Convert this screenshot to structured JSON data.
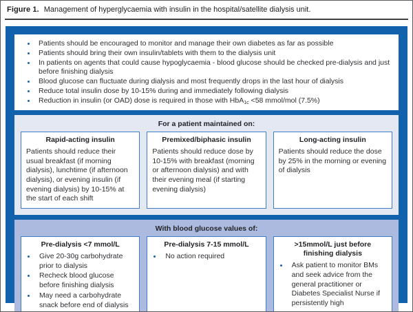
{
  "figure": {
    "label": "Figure 1.",
    "caption": "Management of hyperglycaemia with insulin in the hospital/satellite dialysis unit."
  },
  "colors": {
    "dark_blue_frame": "#1161ac",
    "box_border_blue": "#3e7cc3",
    "maintained_panel_bg": "#e3e8f3",
    "glucose_panel_bg": "#abbade",
    "bullet_blue": "#1a5fae",
    "text": "#2e2e33"
  },
  "general_advice": {
    "bullets": [
      "Patients should be encouraged to monitor and manage their own diabetes as far as possible",
      "Patients should bring their own insulin/tablets with them to the dialysis unit",
      "In patients on agents that could cause hypoglycaemia - blood glucose should be checked pre-dialysis and just before finishing dialysis",
      "Blood glucose can fluctuate during dialysis and most frequently drops in the last hour of dialysis",
      "Reduce total insulin dose by 10-15% during and immediately following dialysis",
      "Reduction in insulin (or OAD) dose is required in those with HbA1c <58 mmol/mol (7.5%)"
    ]
  },
  "maintained_on": {
    "header": "For a patient maintained on:",
    "columns": [
      {
        "title": "Rapid-acting insulin",
        "body": "Patients should reduce their usual breakfast (if morning dialysis), lunchtime (if afternoon dialysis), or evening insulin (if evening dialysis) by 10-15% at the start of each shift"
      },
      {
        "title": "Premixed/biphasic insulin",
        "body": "Patients should reduce dose by 10-15% with breakfast (morning or afternoon dialysis) and with their evening meal (if starting evening dialysis)"
      },
      {
        "title": "Long-acting insulin",
        "body": "Patients should reduce the dose by 25% in the morning or evening of dialysis"
      }
    ]
  },
  "glucose_values": {
    "header": "With blood glucose values of:",
    "columns": [
      {
        "title": "Pre-dialysis <7 mmol/L",
        "bullets": [
          "Give 20-30g carbohydrate prior to dialysis",
          "Recheck blood glucose before finishing dialysis",
          "May need a carbohydrate snack before end of dialysis"
        ]
      },
      {
        "title": "Pre-dialysis 7-15 mmol/L",
        "bullets": [
          "No action required"
        ]
      },
      {
        "title": ">15mmol/L just before finishing dialysis",
        "bullets": [
          "Ask patient to monitor BMs and seek advice from the general practitioner or Diabetes Specialist Nurse if persistently high"
        ]
      }
    ]
  }
}
